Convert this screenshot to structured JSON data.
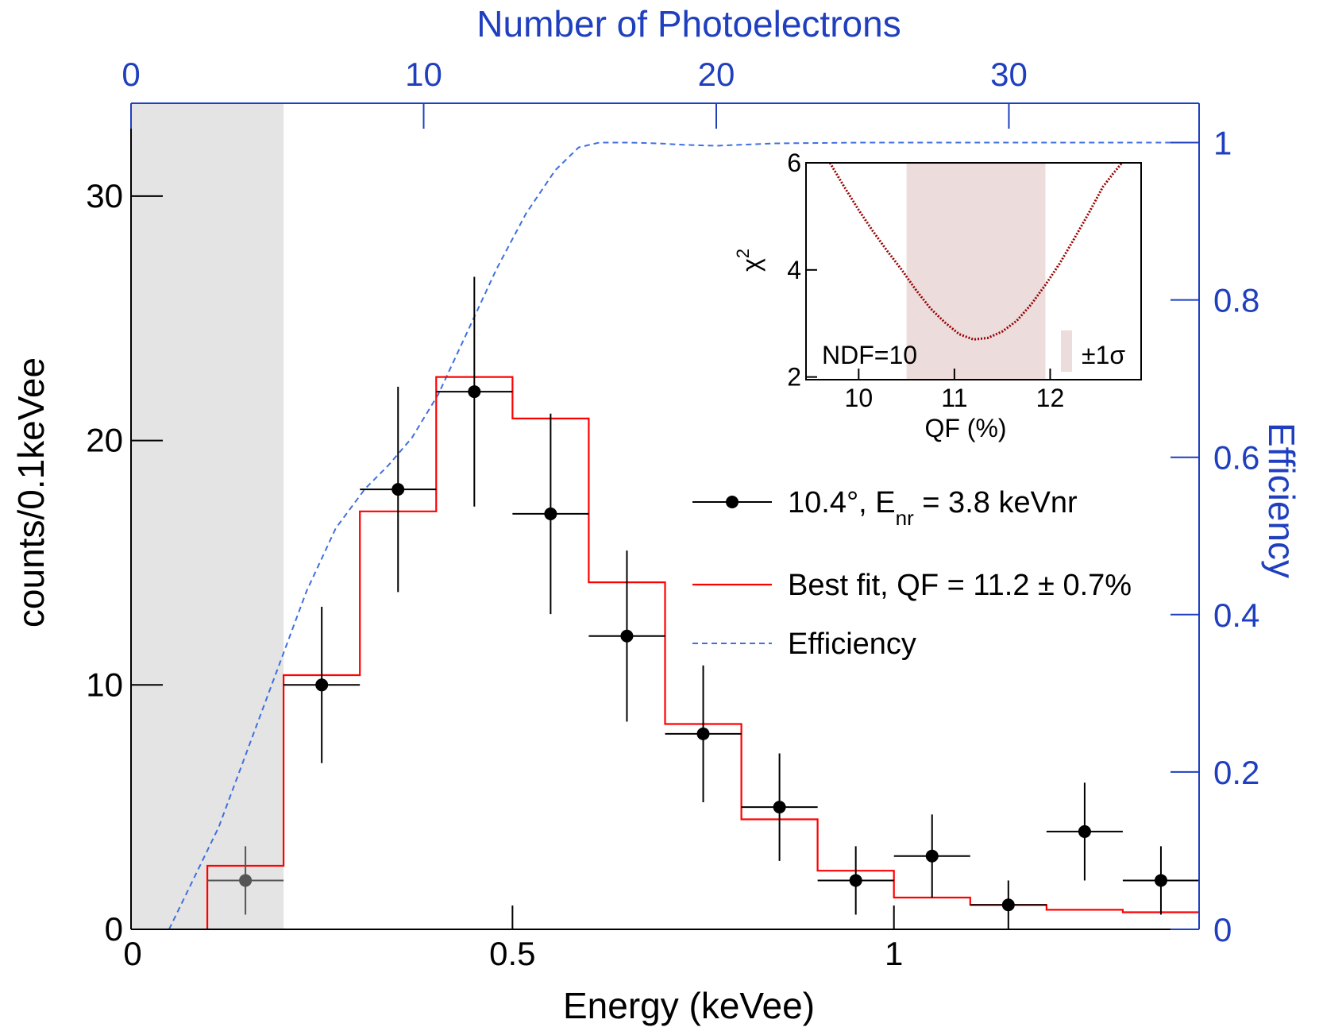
{
  "chart_data": {
    "type": "line",
    "xlabel": "Energy (keVee)",
    "ylabel": "counts/0.1keVee",
    "x2label": "Number of Photoelectrons",
    "y2label": "Efficiency",
    "xlim": [
      0,
      1.4
    ],
    "ylim": [
      0,
      33.8
    ],
    "x2lim": [
      0,
      36.5
    ],
    "y2lim": [
      0,
      1.05
    ],
    "xticks": [
      0,
      0.5,
      1
    ],
    "xtick_labels": [
      "0",
      "0.5",
      "1"
    ],
    "yticks": [
      0,
      10,
      20,
      30
    ],
    "ytick_labels": [
      "0",
      "10",
      "20",
      "30"
    ],
    "x2ticks": [
      0,
      10,
      20,
      30
    ],
    "x2tick_labels": [
      "0",
      "10",
      "20",
      "30"
    ],
    "y2ticks": [
      0,
      0.2,
      0.4,
      0.6,
      0.8,
      1
    ],
    "y2tick_labels": [
      "0",
      "0.2",
      "0.4",
      "0.6",
      "0.8",
      "1"
    ],
    "threshold_shaded": [
      0,
      0.2
    ],
    "data_series": {
      "name": "10.4°, E",
      "name_sub": "nr",
      "name_rest": " = 3.8 keVnr",
      "x": [
        0.15,
        0.25,
        0.35,
        0.45,
        0.55,
        0.65,
        0.75,
        0.85,
        0.95,
        1.05,
        1.15,
        1.25,
        1.35
      ],
      "y": [
        2,
        10,
        18,
        22,
        17,
        12,
        8,
        5,
        2,
        3,
        1,
        4,
        2
      ],
      "xerr": 0.05,
      "yerr_low": [
        1.4,
        3.2,
        4.2,
        4.7,
        4.1,
        3.5,
        2.8,
        2.2,
        1.4,
        1.7,
        1.0,
        2.0,
        1.4
      ],
      "yerr_high": [
        1.4,
        3.2,
        4.2,
        4.7,
        4.1,
        3.5,
        2.8,
        2.2,
        1.4,
        1.7,
        1.0,
        2.0,
        1.4
      ]
    },
    "fit_series": {
      "name": "Best fit, QF = 11.2 ± 0.7%",
      "bin_edges": [
        0.1,
        0.2,
        0.3,
        0.4,
        0.5,
        0.6,
        0.7,
        0.8,
        0.9,
        1.0,
        1.1,
        1.2,
        1.3,
        1.4
      ],
      "values": [
        2.6,
        10.4,
        17.1,
        22.6,
        20.9,
        14.2,
        8.4,
        4.5,
        2.4,
        1.3,
        1.0,
        0.8,
        0.7
      ]
    },
    "efficiency_series": {
      "name": "Efficiency",
      "x_pe": [
        1.3,
        3,
        4.5,
        6,
        7,
        8,
        8.8,
        9.6,
        10.5,
        11.5,
        12.5,
        13.5,
        14.5,
        15.3,
        16,
        17,
        18,
        19,
        20,
        22,
        25,
        30,
        36.5
      ],
      "y": [
        0,
        0.13,
        0.28,
        0.43,
        0.51,
        0.56,
        0.59,
        0.625,
        0.68,
        0.76,
        0.84,
        0.91,
        0.965,
        0.994,
        1.0,
        1.0,
        0.999,
        0.997,
        0.996,
        0.999,
        1.0,
        1.0,
        1.0
      ]
    },
    "legend_position": "center-right",
    "inset": {
      "xlabel": "QF (%)",
      "ylabel": "χ",
      "ylabel_sup": "2",
      "xlim": [
        9.45,
        12.95
      ],
      "ylim": [
        1.95,
        6.0
      ],
      "xticks": [
        10,
        11,
        12
      ],
      "xtick_labels": [
        "10",
        "11",
        "12"
      ],
      "yticks": [
        2,
        4,
        6
      ],
      "ytick_labels": [
        "2",
        "4",
        "6"
      ],
      "sigma_band": [
        10.5,
        11.95
      ],
      "sigma_label": "±1σ",
      "ndf_label": "NDF=10",
      "chi2_curve": {
        "x": [
          9.7,
          9.85,
          10.0,
          10.15,
          10.3,
          10.45,
          10.6,
          10.75,
          10.9,
          11.05,
          11.2,
          11.35,
          11.5,
          11.65,
          11.8,
          11.95,
          12.1,
          12.25,
          12.4,
          12.55,
          12.65,
          12.75
        ],
        "y": [
          6.0,
          5.55,
          5.12,
          4.72,
          4.35,
          4.0,
          3.62,
          3.28,
          3.02,
          2.8,
          2.7,
          2.73,
          2.85,
          3.05,
          3.35,
          3.72,
          4.12,
          4.58,
          5.05,
          5.55,
          5.78,
          6.0
        ]
      }
    },
    "colors": {
      "data": "#000000",
      "fit": "#ff0000",
      "efficiency": "#3f6fe0",
      "blue_axis": "#1f3fbf",
      "threshold_fill": "#e4e4e4",
      "sigma_band_fill": "#ecdcdc",
      "chi2_curve": "#990000"
    }
  }
}
